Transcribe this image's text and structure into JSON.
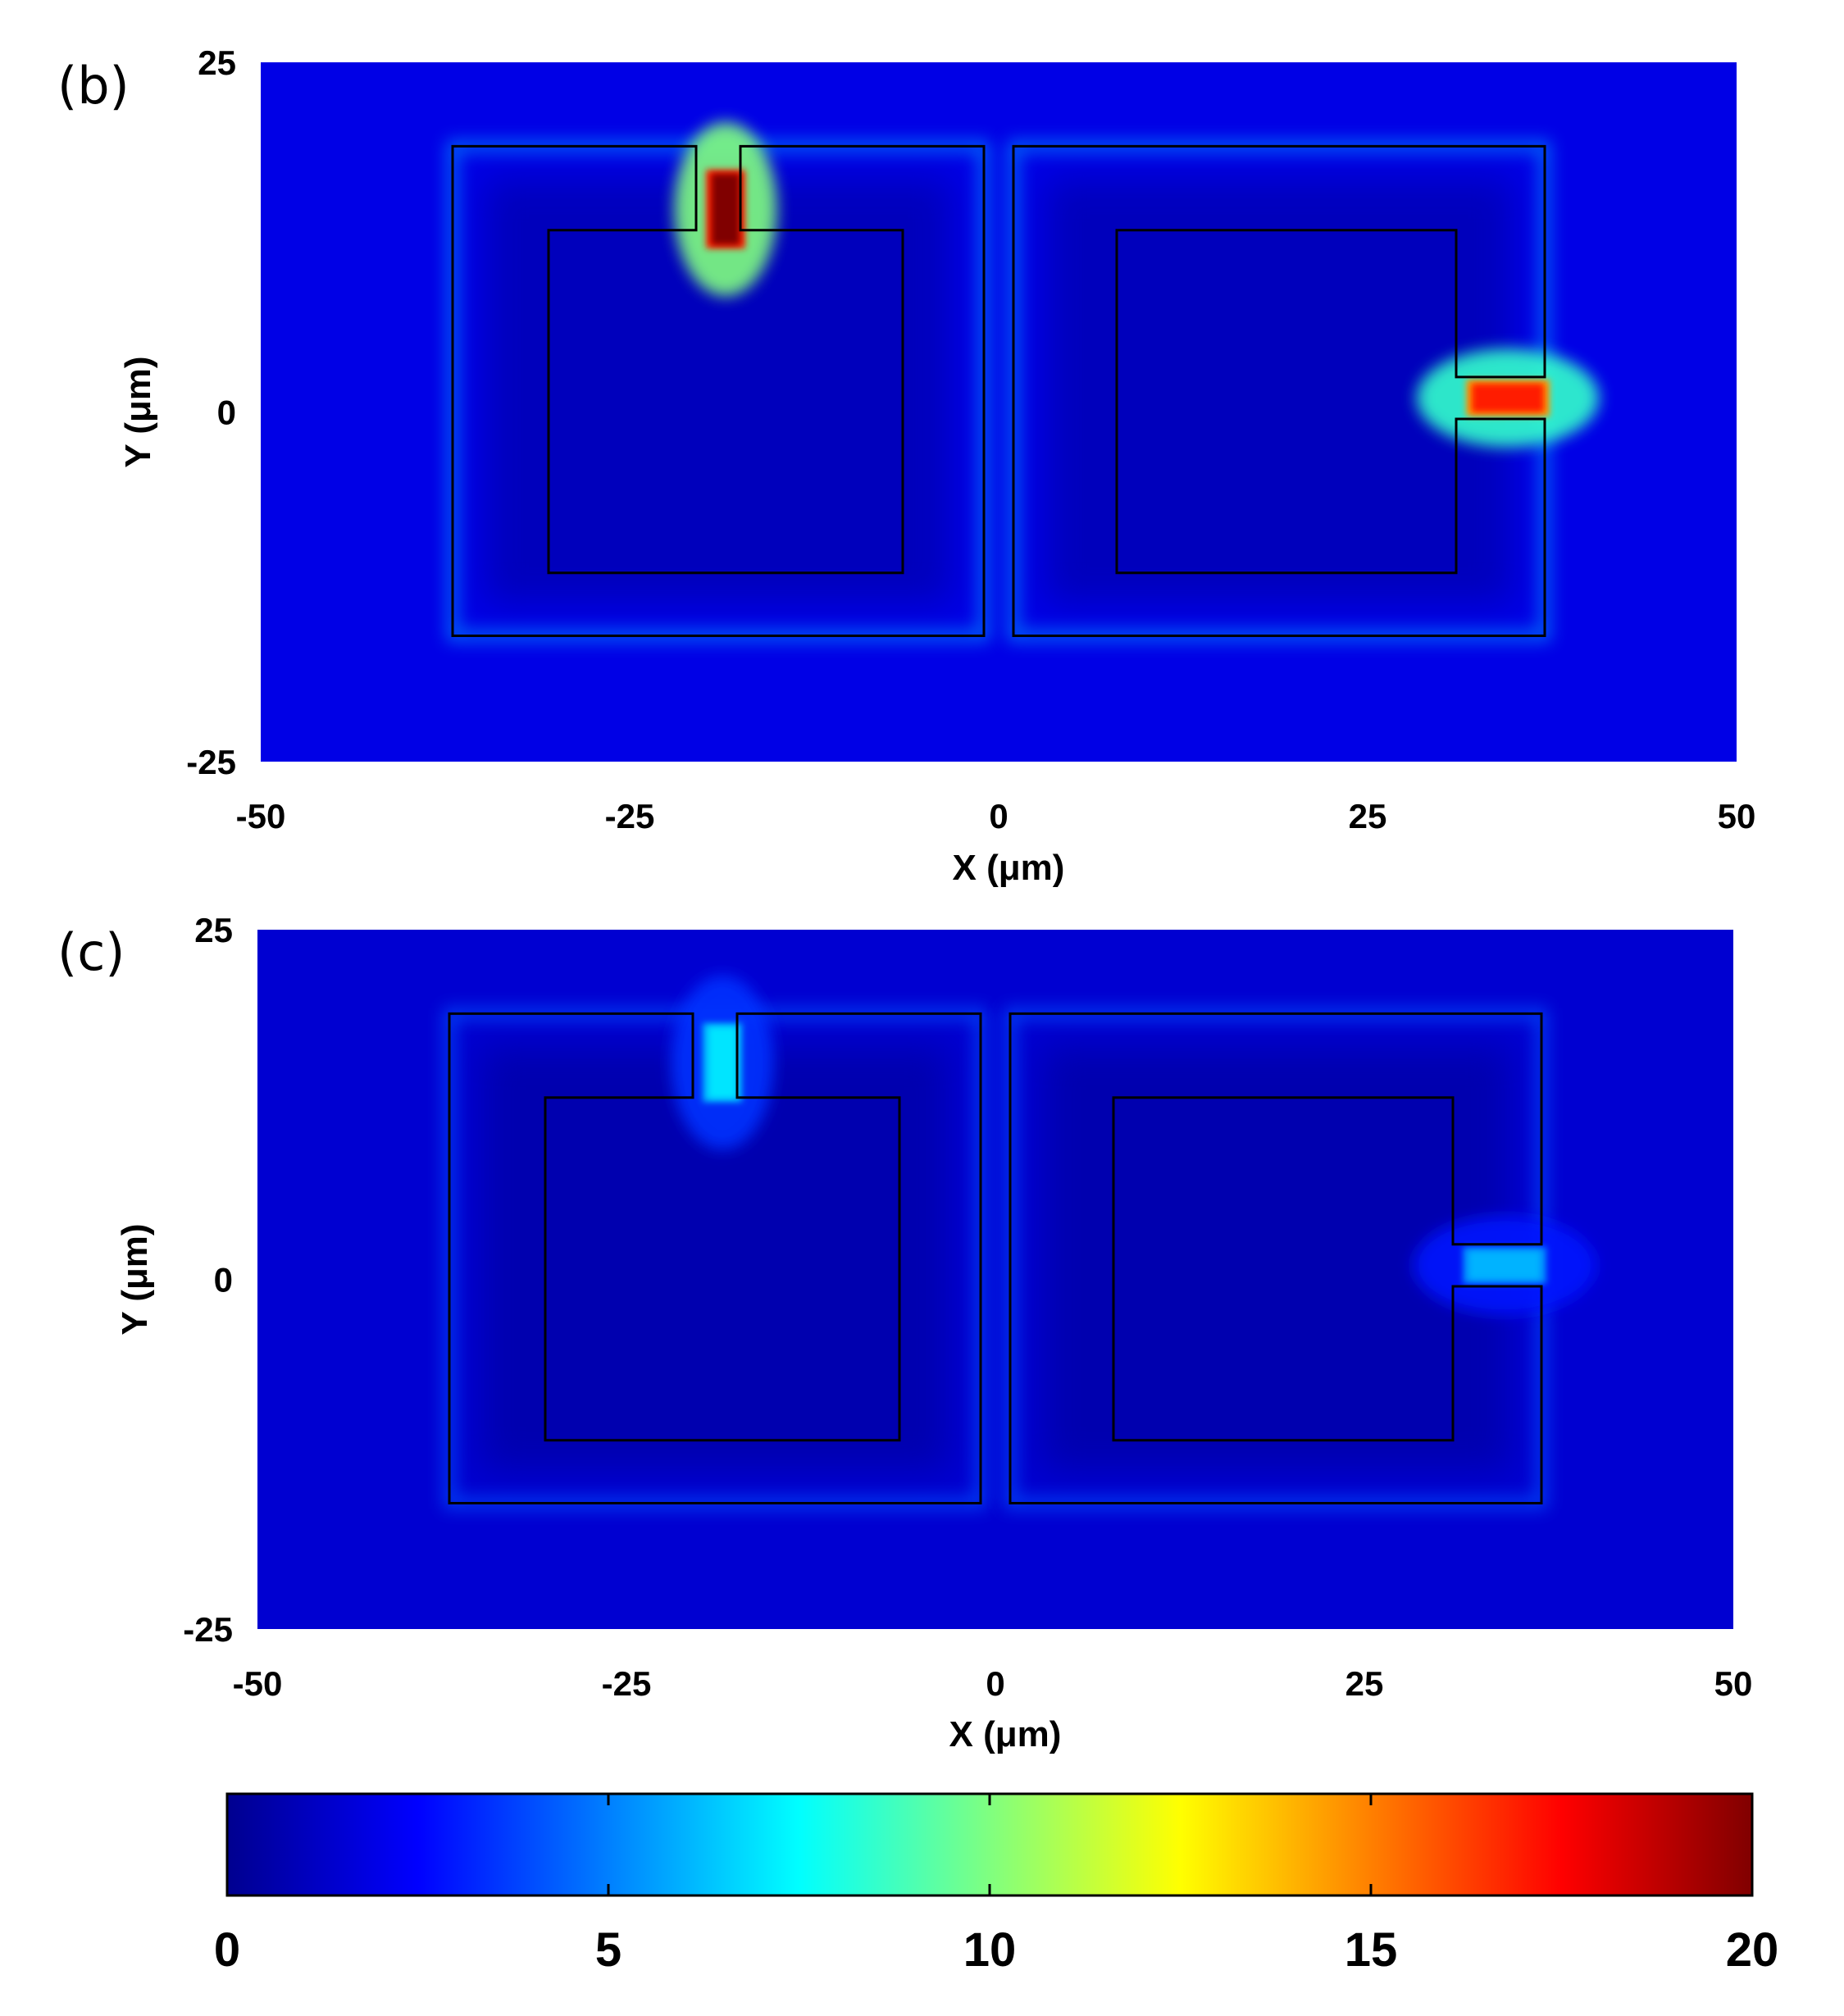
{
  "chart_data": {
    "type": "heatmap",
    "colormap": "jet",
    "color_range": [
      0,
      20
    ],
    "colorbar": {
      "ticks": [
        0,
        5,
        10,
        15,
        20
      ],
      "tick_labels": [
        "0",
        "5",
        "10",
        "15",
        "20"
      ],
      "placement": "bottom"
    },
    "panels": [
      {
        "label": "(b)",
        "xlabel": "X (μm)",
        "ylabel": "Y (μm)",
        "xlim": [
          -50,
          50
        ],
        "ylim": [
          -25,
          25
        ],
        "xticks": [
          -50,
          -25,
          0,
          25,
          50
        ],
        "xtick_labels": [
          "-50",
          "-25",
          "0",
          "25",
          "50"
        ],
        "yticks": [
          -25,
          0,
          25
        ],
        "ytick_labels": [
          "-25",
          "0",
          "25"
        ],
        "background_level": 2,
        "hotspots": [
          {
            "x": -18.5,
            "y": 14.5,
            "value": 20,
            "region": "top gap of left resonator"
          },
          {
            "x": 34.5,
            "y": 1,
            "value": 17,
            "region": "right gap of right resonator"
          }
        ]
      },
      {
        "label": "(c)",
        "xlabel": "X (μm)",
        "ylabel": "Y (μm)",
        "xlim": [
          -50,
          50
        ],
        "ylim": [
          -25,
          25
        ],
        "xticks": [
          -50,
          -25,
          0,
          25,
          50
        ],
        "xtick_labels": [
          "-50",
          "-25",
          "0",
          "25",
          "50"
        ],
        "yticks": [
          -25,
          0,
          25
        ],
        "ytick_labels": [
          "-25",
          "0",
          "25"
        ],
        "background_level": 1.6,
        "hotspots": [
          {
            "x": -18.5,
            "y": 15.5,
            "value": 7,
            "region": "top gap of left resonator"
          },
          {
            "x": 34.5,
            "y": 1,
            "value": 6,
            "region": "right gap of right resonator"
          }
        ]
      }
    ],
    "structures": {
      "left_resonator": {
        "outer": [
          -37,
          -16,
          -1,
          19
        ],
        "inner": [
          -30.5,
          -11.5,
          -6.5,
          13
        ],
        "gap_x": [
          -20.5,
          -17.5
        ],
        "gap_side": "top"
      },
      "right_resonator": {
        "outer": [
          1,
          -16,
          37,
          19
        ],
        "inner": [
          8,
          -11.5,
          31,
          13
        ],
        "gap_y": [
          -0.5,
          2.5
        ],
        "gap_side": "right"
      }
    }
  }
}
